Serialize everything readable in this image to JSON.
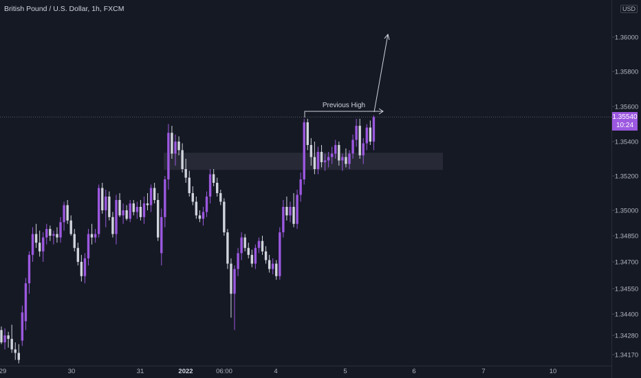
{
  "header": {
    "symbol_text": "British Pound / U.S. Dollar, 1h, FXCM",
    "currency": "USD"
  },
  "last_price": {
    "value": "1.35540",
    "countdown": "10:24"
  },
  "colors": {
    "background": "#151924",
    "up_candle": "#9c58e0",
    "down_candle": "#d1d4dc",
    "axis_text": "#b2b5be",
    "zone": "#2a2e39",
    "annotation": "#d1d4dc",
    "price_line": "#5d606b"
  },
  "chart_data": {
    "type": "candlestick",
    "title": "British Pound / U.S. Dollar, 1h, FXCM",
    "y_ticks": [
      1.36,
      1.358,
      1.356,
      1.354,
      1.352,
      1.35,
      1.3485,
      1.347,
      1.3455,
      1.344,
      1.3428,
      1.3417
    ],
    "y_tick_labels": [
      "1.36000",
      "1.35800",
      "1.35600",
      "1.35400",
      "1.35200",
      "1.35000",
      "1.34850",
      "1.34700",
      "1.34550",
      "1.34400",
      "1.34280",
      "1.34170"
    ],
    "x_ticks": [
      "29",
      "30",
      "31",
      "2022",
      "06:00",
      "4",
      "5",
      "6",
      "7",
      "10"
    ],
    "last_price": 1.3554,
    "candles": [
      [
        1.3431,
        1.3433,
        1.3423,
        1.3424
      ],
      [
        1.3424,
        1.3432,
        1.342,
        1.3428
      ],
      [
        1.3428,
        1.343,
        1.3421,
        1.3426
      ],
      [
        1.3426,
        1.3434,
        1.3418,
        1.342
      ],
      [
        1.342,
        1.3424,
        1.3414,
        1.3418
      ],
      [
        1.3418,
        1.3423,
        1.3412,
        1.3414
      ],
      [
        1.3425,
        1.3445,
        1.3422,
        1.3441
      ],
      [
        1.3436,
        1.3461,
        1.3431,
        1.3458
      ],
      [
        1.3458,
        1.3476,
        1.3452,
        1.3474
      ],
      [
        1.3474,
        1.349,
        1.347,
        1.3486
      ],
      [
        1.3486,
        1.3492,
        1.3478,
        1.3481
      ],
      [
        1.3481,
        1.3488,
        1.3473,
        1.3476
      ],
      [
        1.3476,
        1.3487,
        1.347,
        1.3484
      ],
      [
        1.3484,
        1.3492,
        1.348,
        1.3489
      ],
      [
        1.3489,
        1.3491,
        1.3482,
        1.3485
      ],
      [
        1.3485,
        1.3488,
        1.348,
        1.3486
      ],
      [
        1.3486,
        1.349,
        1.3481,
        1.3484
      ],
      [
        1.3484,
        1.3496,
        1.3481,
        1.3493
      ],
      [
        1.3493,
        1.3505,
        1.3488,
        1.3503
      ],
      [
        1.3503,
        1.3506,
        1.3492,
        1.3494
      ],
      [
        1.3494,
        1.3497,
        1.3485,
        1.3486
      ],
      [
        1.3486,
        1.3489,
        1.3476,
        1.3478
      ],
      [
        1.3478,
        1.3481,
        1.3468,
        1.347
      ],
      [
        1.347,
        1.3474,
        1.3459,
        1.3462
      ],
      [
        1.3462,
        1.3475,
        1.3458,
        1.3472
      ],
      [
        1.3472,
        1.3489,
        1.3468,
        1.3486
      ],
      [
        1.3486,
        1.3492,
        1.348,
        1.3484
      ],
      [
        1.3484,
        1.3489,
        1.3481,
        1.3486
      ],
      [
        1.3486,
        1.3515,
        1.3484,
        1.3513
      ],
      [
        1.3513,
        1.3516,
        1.3498,
        1.35
      ],
      [
        1.35,
        1.3512,
        1.349,
        1.3508
      ],
      [
        1.3508,
        1.3511,
        1.3494,
        1.3496
      ],
      [
        1.3496,
        1.3499,
        1.3484,
        1.3486
      ],
      [
        1.3486,
        1.3509,
        1.348,
        1.3506
      ],
      [
        1.3506,
        1.351,
        1.3496,
        1.3497
      ],
      [
        1.3497,
        1.3504,
        1.3492,
        1.35
      ],
      [
        1.35,
        1.3503,
        1.3494,
        1.3495
      ],
      [
        1.3495,
        1.3506,
        1.3493,
        1.3504
      ],
      [
        1.3504,
        1.3506,
        1.3497,
        1.3499
      ],
      [
        1.3499,
        1.3505,
        1.3495,
        1.3502
      ],
      [
        1.3502,
        1.3506,
        1.3494,
        1.3496
      ],
      [
        1.3496,
        1.3508,
        1.3492,
        1.3504
      ],
      [
        1.3504,
        1.351,
        1.35,
        1.3503
      ],
      [
        1.3503,
        1.3515,
        1.3499,
        1.3513
      ],
      [
        1.3513,
        1.3516,
        1.3504,
        1.3506
      ],
      [
        1.3506,
        1.351,
        1.3482,
        1.3484
      ],
      [
        1.3475,
        1.3501,
        1.3468,
        1.3496
      ],
      [
        1.3496,
        1.352,
        1.349,
        1.3518
      ],
      [
        1.3518,
        1.355,
        1.3512,
        1.3545
      ],
      [
        1.3545,
        1.3549,
        1.353,
        1.3533
      ],
      [
        1.3533,
        1.3544,
        1.3526,
        1.354
      ],
      [
        1.354,
        1.3543,
        1.3532,
        1.3535
      ],
      [
        1.3535,
        1.3539,
        1.3522,
        1.3524
      ],
      [
        1.3524,
        1.353,
        1.3516,
        1.3519
      ],
      [
        1.3519,
        1.3523,
        1.3508,
        1.351
      ],
      [
        1.351,
        1.3514,
        1.3503,
        1.3505
      ],
      [
        1.3505,
        1.3508,
        1.3495,
        1.3497
      ],
      [
        1.3497,
        1.35,
        1.3493,
        1.3495
      ],
      [
        1.3495,
        1.3502,
        1.3491,
        1.3499
      ],
      [
        1.3499,
        1.3511,
        1.3496,
        1.3508
      ],
      [
        1.3508,
        1.3524,
        1.3504,
        1.3521
      ],
      [
        1.3521,
        1.3524,
        1.3514,
        1.3516
      ],
      [
        1.3516,
        1.3519,
        1.3508,
        1.351
      ],
      [
        1.351,
        1.3512,
        1.3503,
        1.3505
      ],
      [
        1.3505,
        1.3507,
        1.3485,
        1.3487
      ],
      [
        1.3487,
        1.3489,
        1.3466,
        1.3469
      ],
      [
        1.3469,
        1.3472,
        1.3438,
        1.3452
      ],
      [
        1.3452,
        1.3468,
        1.3431,
        1.3466
      ],
      [
        1.3466,
        1.3478,
        1.3462,
        1.3475
      ],
      [
        1.3475,
        1.3487,
        1.3471,
        1.3484
      ],
      [
        1.3484,
        1.3486,
        1.3476,
        1.3478
      ],
      [
        1.3478,
        1.3481,
        1.3472,
        1.3474
      ],
      [
        1.3474,
        1.3477,
        1.3467,
        1.3469
      ],
      [
        1.3469,
        1.348,
        1.3466,
        1.3478
      ],
      [
        1.3478,
        1.3484,
        1.3475,
        1.3482
      ],
      [
        1.3482,
        1.3485,
        1.3474,
        1.3476
      ],
      [
        1.3476,
        1.3479,
        1.3469,
        1.3471
      ],
      [
        1.3471,
        1.3474,
        1.3464,
        1.3466
      ],
      [
        1.3466,
        1.3472,
        1.3463,
        1.3469
      ],
      [
        1.3469,
        1.3471,
        1.346,
        1.3462
      ],
      [
        1.3462,
        1.349,
        1.346,
        1.3487
      ],
      [
        1.3487,
        1.3506,
        1.3484,
        1.3502
      ],
      [
        1.3502,
        1.3508,
        1.3494,
        1.3497
      ],
      [
        1.3497,
        1.3505,
        1.3493,
        1.3502
      ],
      [
        1.3502,
        1.351,
        1.349,
        1.3492
      ],
      [
        1.3492,
        1.3512,
        1.3489,
        1.3509
      ],
      [
        1.3509,
        1.3522,
        1.3505,
        1.3518
      ],
      [
        1.3518,
        1.3553,
        1.3515,
        1.3551
      ],
      [
        1.3551,
        1.3553,
        1.3535,
        1.3538
      ],
      [
        1.3538,
        1.3542,
        1.3526,
        1.3531
      ],
      [
        1.3531,
        1.354,
        1.3521,
        1.3524
      ],
      [
        1.3524,
        1.3537,
        1.3521,
        1.3534
      ],
      [
        1.3534,
        1.3538,
        1.3525,
        1.3528
      ],
      [
        1.3528,
        1.3533,
        1.3523,
        1.3529
      ],
      [
        1.3529,
        1.3534,
        1.3525,
        1.3531
      ],
      [
        1.3531,
        1.3537,
        1.3527,
        1.3533
      ],
      [
        1.3533,
        1.3541,
        1.353,
        1.3538
      ],
      [
        1.3538,
        1.354,
        1.3526,
        1.3529
      ],
      [
        1.3529,
        1.3533,
        1.3523,
        1.3531
      ],
      [
        1.3531,
        1.3536,
        1.3525,
        1.3527
      ],
      [
        1.3527,
        1.3535,
        1.3524,
        1.3533
      ],
      [
        1.3533,
        1.3544,
        1.353,
        1.3541
      ],
      [
        1.3541,
        1.3553,
        1.3537,
        1.3549
      ],
      [
        1.3549,
        1.3553,
        1.353,
        1.3532
      ],
      [
        1.3532,
        1.3542,
        1.3527,
        1.3539
      ],
      [
        1.3539,
        1.355,
        1.3535,
        1.3548
      ],
      [
        1.3548,
        1.3552,
        1.3538,
        1.354
      ],
      [
        1.354,
        1.3555,
        1.3535,
        1.3554
      ]
    ],
    "zone": {
      "from_price": 1.35235,
      "to_price": 1.35335
    },
    "annotations": [
      {
        "label": "Previous High",
        "price": 1.3556
      }
    ]
  }
}
